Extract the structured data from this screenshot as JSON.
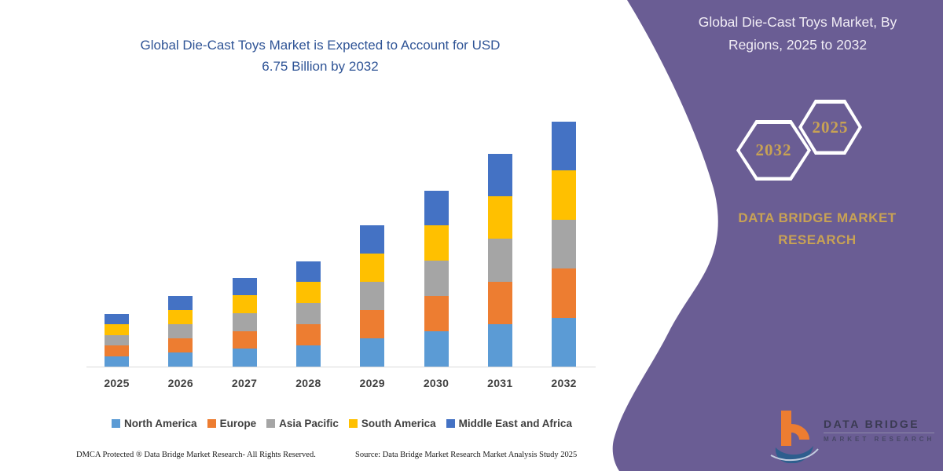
{
  "main_title": {
    "lines": {
      "0": "Global Die-Cast Toys Market is Expected to Account for USD",
      "1": "6.75 Billion by 2032"
    },
    "color": "#2f5496"
  },
  "side_panel": {
    "background_color": "#6a5d94",
    "title_lines": {
      "0": "Global Die-Cast Toys Market, By",
      "1": "Regions, 2025 to 2032"
    },
    "hexagon_big": "2032",
    "hexagon_small": "2025",
    "brand_lines": {
      "0": "DATA BRIDGE MARKET",
      "1": "RESEARCH"
    },
    "accent_gold": "#c8a254"
  },
  "chart_data": {
    "type": "bar",
    "stacked": true,
    "title": "Global Die-Cast Toys Market is Expected to Account for USD 6.75 Billion by 2032",
    "unit": "USD Billion",
    "categories": [
      "2025",
      "2026",
      "2027",
      "2028",
      "2029",
      "2030",
      "2031",
      "2032"
    ],
    "series": [
      {
        "name": "North America",
        "color": "#5b9bd5",
        "values": [
          0.29,
          0.39,
          0.49,
          0.58,
          0.78,
          0.97,
          1.17,
          1.35
        ]
      },
      {
        "name": "Europe",
        "color": "#ed7d31",
        "values": [
          0.29,
          0.39,
          0.49,
          0.58,
          0.78,
          0.97,
          1.17,
          1.35
        ]
      },
      {
        "name": "Asia Pacific",
        "color": "#a5a5a5",
        "values": [
          0.29,
          0.39,
          0.49,
          0.58,
          0.78,
          0.97,
          1.17,
          1.35
        ]
      },
      {
        "name": "South America",
        "color": "#ffc000",
        "values": [
          0.29,
          0.39,
          0.49,
          0.58,
          0.78,
          0.97,
          1.17,
          1.35
        ]
      },
      {
        "name": "Middle East and Africa",
        "color": "#4472c4",
        "values": [
          0.29,
          0.39,
          0.49,
          0.58,
          0.78,
          0.97,
          1.17,
          1.35
        ]
      }
    ],
    "estimated_totals": [
      1.45,
      1.94,
      2.44,
      2.91,
      3.88,
      4.83,
      5.83,
      6.75
    ],
    "ylim": [
      0,
      7
    ],
    "gridlines": false,
    "axis_labels_visible": false,
    "legend_position": "bottom"
  },
  "footer": {
    "left": "DMCA Protected ® Data Bridge Market Research-  All Rights Reserved.",
    "source": "Source: Data Bridge Market Research  Market Analysis Study 2025"
  },
  "logo": {
    "title": "DATA BRIDGE",
    "subtitle": "MARKET RESEARCH"
  }
}
